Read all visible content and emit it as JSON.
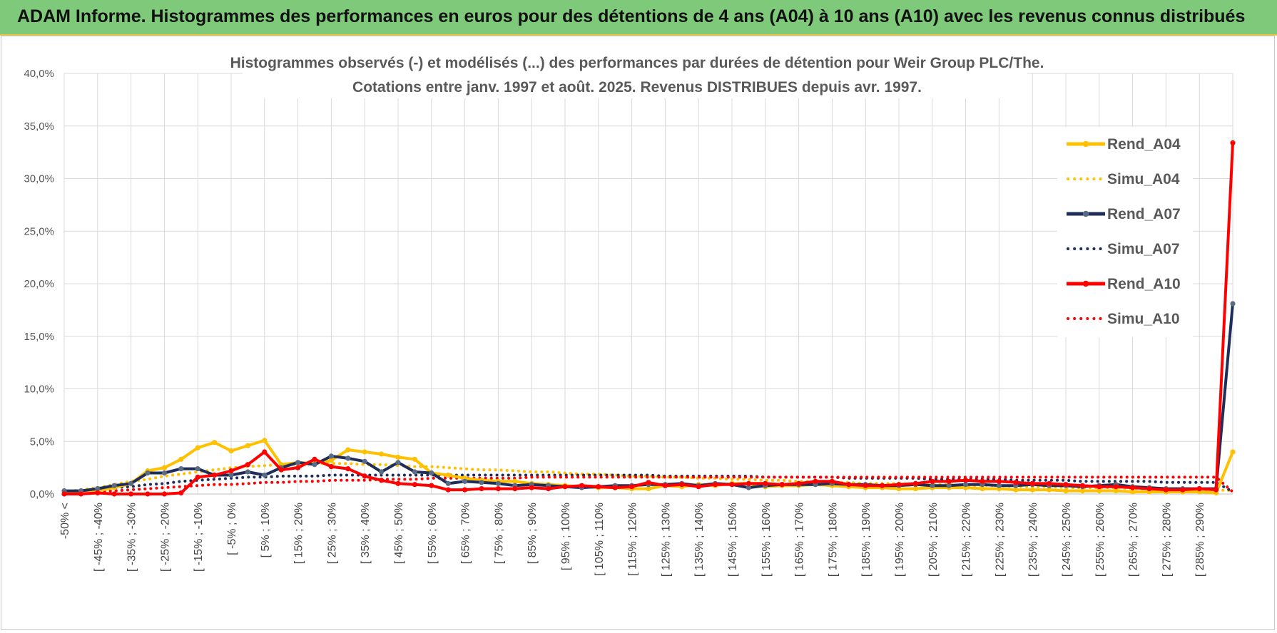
{
  "banner": {
    "title": "ADAM Informe. Histogrammes des performances en euros pour des détentions de 4 ans (A04) à 10 ans (A10) avec les revenus connus distribués"
  },
  "chart_data": {
    "type": "line",
    "title_lines": [
      "Histogrammes observés (-) et modélisés (...) des performances par durées de détention pour Weir Group PLC/The.",
      "Cotations entre janv. 1997 et août. 2025. Revenus DISTRIBUES depuis avr. 1997."
    ],
    "xlabel": "",
    "ylabel": "",
    "ylim": [
      0,
      0.4
    ],
    "y_ticks": [
      0,
      0.05,
      0.1,
      0.15,
      0.2,
      0.25,
      0.3,
      0.35,
      0.4
    ],
    "y_tick_labels": [
      "0,0%",
      "5,0%",
      "10,0%",
      "15,0%",
      "20,0%",
      "25,0%",
      "30,0%",
      "35,0%",
      "40,0%"
    ],
    "grid": true,
    "legend_position": "right",
    "categories": [
      "-50% <",
      "[ -50% ; -45%",
      "[ -45% ; -40%",
      "[ -40% ; -35%",
      "[ -35% ; -30%",
      "[ -30% ; -25%",
      "[ -25% ; -20%",
      "[ -20% ; -15%",
      "[ -15% ; -10%",
      "[ -10% ; -5%",
      "[ -5% ; 0%",
      "[ 0% ; 5%",
      "[ 5% ; 10%",
      "[ 10% ; 15%",
      "[ 15% ; 20%",
      "[ 20% ; 25%",
      "[ 25% ; 30%",
      "[ 30% ; 35%",
      "[ 35% ; 40%",
      "[ 40% ; 45%",
      "[ 45% ; 50%",
      "[ 50% ; 55%",
      "[ 55% ; 60%",
      "[ 60% ; 65%",
      "[ 65% ; 70%",
      "[ 70% ; 75%",
      "[ 75% ; 80%",
      "[ 80% ; 85%",
      "[ 85% ; 90%",
      "[ 90% ; 95%",
      "[ 95% ; 100%",
      "[ 100% ; 105%",
      "[ 105% ; 110%",
      "[ 110% ; 115%",
      "[ 115% ; 120%",
      "[ 120% ; 125%",
      "[ 125% ; 130%",
      "[ 130% ; 135%",
      "[ 135% ; 140%",
      "[ 140% ; 145%",
      "[ 145% ; 150%",
      "[ 150% ; 155%",
      "[ 155% ; 160%",
      "[ 160% ; 165%",
      "[ 165% ; 170%",
      "[ 170% ; 175%",
      "[ 175% ; 180%",
      "[ 180% ; 185%",
      "[ 185% ; 190%",
      "[ 190% ; 195%",
      "[ 195% ; 200%",
      "[ 200% ; 205%",
      "[ 205% ; 210%",
      "[ 210% ; 215%",
      "[ 215% ; 220%",
      "[ 220% ; 225%",
      "[ 225% ; 230%",
      "[ 230% ; 235%",
      "[ 235% ; 240%",
      "[ 240% ; 245%",
      "[ 245% ; 250%",
      "[ 250% ; 255%",
      "[ 255% ; 260%",
      "[ 260% ; 265%",
      "[ 265% ; 270%",
      "[ 270% ; 275%",
      "[ 275% ; 280%",
      "[ 280% ; 285%",
      "[ 285% ; 290%",
      "[ 290% ; 295%",
      ">= 295%"
    ],
    "x_tick_labels": [
      "-50% <",
      "[ -45% ; -40%",
      "[ -35% ; -30%",
      "[ -25% ; -20%",
      "[ -15% ; -10%",
      "[ -5% ; 0%",
      "[ 5% ; 10%",
      "[ 15% ; 20%",
      "[ 25% ; 30%",
      "[ 35% ; 40%",
      "[ 45% ; 50%",
      "[ 55% ; 60%",
      "[ 65% ; 70%",
      "[ 75% ; 80%",
      "[ 85% ; 90%",
      "[ 95% ; 100%",
      "[ 105% ; 110%",
      "[ 115% ; 120%",
      "[ 125% ; 130%",
      "[ 135% ; 140%",
      "[ 145% ; 150%",
      "[ 155% ; 160%",
      "[ 165% ; 170%",
      "[ 175% ; 180%",
      "[ 185% ; 190%",
      "[ 195% ; 200%",
      "[ 205% ; 210%",
      "[ 215% ; 220%",
      "[ 225% ; 230%",
      "[ 235% ; 240%",
      "[ 245% ; 250%",
      "[ 255% ; 260%",
      "[ 265% ; 270%",
      "[ 275% ; 280%",
      "[ 285% ; 290%"
    ],
    "series": [
      {
        "name": "Rend_A04",
        "style": "solid",
        "color": "#ffc000",
        "markers": true,
        "values": [
          0.002,
          0.002,
          0.003,
          0.006,
          0.01,
          0.022,
          0.025,
          0.033,
          0.044,
          0.049,
          0.041,
          0.046,
          0.051,
          0.028,
          0.03,
          0.029,
          0.032,
          0.042,
          0.04,
          0.038,
          0.035,
          0.033,
          0.02,
          0.018,
          0.015,
          0.013,
          0.012,
          0.012,
          0.01,
          0.009,
          0.008,
          0.007,
          0.006,
          0.006,
          0.005,
          0.005,
          0.008,
          0.007,
          0.009,
          0.008,
          0.01,
          0.01,
          0.007,
          0.008,
          0.008,
          0.009,
          0.008,
          0.007,
          0.006,
          0.006,
          0.005,
          0.005,
          0.006,
          0.006,
          0.006,
          0.005,
          0.005,
          0.004,
          0.004,
          0.004,
          0.003,
          0.003,
          0.003,
          0.003,
          0.002,
          0.002,
          0.002,
          0.002,
          0.002,
          0.001,
          0.04
        ]
      },
      {
        "name": "Simu_A04",
        "style": "dotted",
        "color": "#ffc000",
        "markers": false,
        "values": [
          0.002,
          0.004,
          0.006,
          0.009,
          0.012,
          0.014,
          0.017,
          0.019,
          0.021,
          0.023,
          0.025,
          0.026,
          0.027,
          0.028,
          0.028,
          0.029,
          0.029,
          0.029,
          0.028,
          0.028,
          0.027,
          0.026,
          0.026,
          0.025,
          0.024,
          0.023,
          0.023,
          0.022,
          0.021,
          0.021,
          0.02,
          0.019,
          0.019,
          0.018,
          0.017,
          0.017,
          0.016,
          0.016,
          0.015,
          0.015,
          0.014,
          0.014,
          0.013,
          0.013,
          0.012,
          0.012,
          0.011,
          0.011,
          0.01,
          0.01,
          0.01,
          0.009,
          0.009,
          0.009,
          0.008,
          0.008,
          0.008,
          0.007,
          0.007,
          0.007,
          0.006,
          0.006,
          0.006,
          0.006,
          0.005,
          0.005,
          0.005,
          0.005,
          0.004,
          0.004,
          0.003
        ]
      },
      {
        "name": "Rend_A07",
        "style": "solid",
        "color": "#1f2d5a",
        "markers": true,
        "values": [
          0.003,
          0.003,
          0.005,
          0.008,
          0.01,
          0.02,
          0.02,
          0.024,
          0.024,
          0.018,
          0.018,
          0.021,
          0.018,
          0.025,
          0.03,
          0.028,
          0.036,
          0.034,
          0.031,
          0.021,
          0.03,
          0.021,
          0.02,
          0.01,
          0.012,
          0.011,
          0.01,
          0.008,
          0.009,
          0.008,
          0.007,
          0.006,
          0.007,
          0.008,
          0.008,
          0.009,
          0.009,
          0.01,
          0.008,
          0.01,
          0.009,
          0.006,
          0.008,
          0.009,
          0.009,
          0.009,
          0.01,
          0.009,
          0.009,
          0.008,
          0.008,
          0.009,
          0.008,
          0.008,
          0.009,
          0.009,
          0.008,
          0.008,
          0.009,
          0.008,
          0.008,
          0.007,
          0.008,
          0.009,
          0.007,
          0.006,
          0.005,
          0.005,
          0.005,
          0.005,
          0.181
        ]
      },
      {
        "name": "Simu_A07",
        "style": "dotted",
        "color": "#1f2d5a",
        "markers": false,
        "values": [
          0.002,
          0.003,
          0.004,
          0.006,
          0.007,
          0.009,
          0.01,
          0.012,
          0.013,
          0.014,
          0.015,
          0.016,
          0.016,
          0.017,
          0.017,
          0.017,
          0.018,
          0.018,
          0.018,
          0.018,
          0.018,
          0.018,
          0.018,
          0.018,
          0.018,
          0.018,
          0.018,
          0.018,
          0.018,
          0.018,
          0.018,
          0.018,
          0.018,
          0.018,
          0.018,
          0.018,
          0.017,
          0.017,
          0.017,
          0.017,
          0.017,
          0.017,
          0.016,
          0.016,
          0.016,
          0.016,
          0.016,
          0.015,
          0.015,
          0.015,
          0.015,
          0.015,
          0.014,
          0.014,
          0.014,
          0.014,
          0.014,
          0.013,
          0.013,
          0.013,
          0.013,
          0.012,
          0.012,
          0.012,
          0.012,
          0.012,
          0.011,
          0.011,
          0.011,
          0.011,
          0.002
        ]
      },
      {
        "name": "Rend_A10",
        "style": "solid",
        "color": "#ff0000",
        "markers": true,
        "values": [
          0.0,
          0.0,
          0.001,
          0.0,
          0.0,
          0.0,
          0.0,
          0.001,
          0.016,
          0.018,
          0.022,
          0.028,
          0.04,
          0.023,
          0.025,
          0.033,
          0.026,
          0.024,
          0.017,
          0.013,
          0.01,
          0.009,
          0.008,
          0.004,
          0.004,
          0.005,
          0.005,
          0.005,
          0.006,
          0.005,
          0.007,
          0.008,
          0.007,
          0.006,
          0.007,
          0.011,
          0.008,
          0.009,
          0.007,
          0.009,
          0.009,
          0.01,
          0.01,
          0.009,
          0.01,
          0.012,
          0.012,
          0.009,
          0.008,
          0.008,
          0.009,
          0.01,
          0.012,
          0.012,
          0.013,
          0.012,
          0.012,
          0.011,
          0.01,
          0.01,
          0.009,
          0.008,
          0.007,
          0.007,
          0.006,
          0.005,
          0.004,
          0.004,
          0.005,
          0.004,
          0.334
        ]
      },
      {
        "name": "Simu_A10",
        "style": "dotted",
        "color": "#ff0000",
        "markers": false,
        "values": [
          0.0,
          0.001,
          0.002,
          0.003,
          0.004,
          0.005,
          0.006,
          0.007,
          0.008,
          0.009,
          0.009,
          0.01,
          0.011,
          0.011,
          0.012,
          0.012,
          0.013,
          0.013,
          0.013,
          0.014,
          0.014,
          0.014,
          0.015,
          0.015,
          0.015,
          0.015,
          0.015,
          0.015,
          0.016,
          0.016,
          0.016,
          0.016,
          0.016,
          0.016,
          0.016,
          0.016,
          0.016,
          0.016,
          0.016,
          0.016,
          0.016,
          0.016,
          0.016,
          0.016,
          0.016,
          0.016,
          0.016,
          0.016,
          0.016,
          0.016,
          0.016,
          0.016,
          0.016,
          0.016,
          0.016,
          0.016,
          0.016,
          0.016,
          0.016,
          0.016,
          0.016,
          0.016,
          0.016,
          0.016,
          0.016,
          0.016,
          0.016,
          0.016,
          0.016,
          0.016,
          0.002
        ]
      }
    ]
  }
}
